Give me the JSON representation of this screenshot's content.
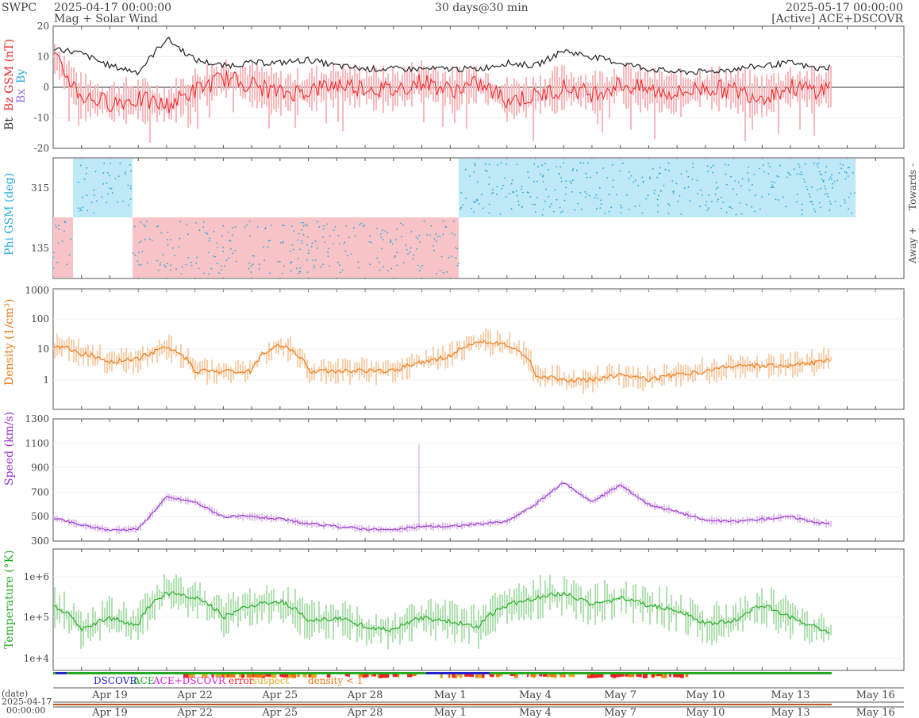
{
  "header": {
    "brand": "SWPC",
    "start": "2025-04-17 00:00:00",
    "subtitle": "Mag + Solar Wind",
    "resolution": "30 days@30 min",
    "end": "2025-05-17 00:00:00",
    "source": "[Active] ACE+DSCOVR"
  },
  "chart_data": [
    {
      "type": "line",
      "name": "mag",
      "ylabels": [
        "Bt",
        "Bz GSM (nT)",
        "Bx",
        "By"
      ],
      "ylim": [
        -20,
        20
      ],
      "yticks": [
        "20",
        "10",
        "0",
        "-10",
        "-20"
      ],
      "colors": {
        "bt": "#222222",
        "bz": "#ee2222",
        "bx": "#9966dd",
        "by": "#22aadd"
      },
      "series": [
        {
          "name": "Bt",
          "x": [
            0,
            1,
            2,
            3,
            4,
            5,
            6,
            7,
            8,
            9,
            10,
            11,
            12,
            13,
            14,
            15,
            16,
            17,
            18,
            19,
            20,
            21,
            22,
            23,
            24,
            25,
            26,
            27,
            28,
            29,
            30
          ],
          "values": [
            13,
            11,
            7,
            5,
            16,
            9,
            7,
            8,
            8,
            9,
            7,
            6,
            6,
            6,
            6,
            6,
            8,
            7,
            12,
            10,
            8,
            6,
            5,
            5,
            6,
            7,
            8,
            6,
            8,
            11,
            7
          ]
        },
        {
          "name": "Bz GSM",
          "x": [
            0,
            1,
            2,
            3,
            4,
            5,
            6,
            7,
            8,
            9,
            10,
            11,
            12,
            13,
            14,
            15,
            16,
            17,
            18,
            19,
            20,
            21,
            22,
            23,
            24,
            25,
            26,
            27,
            28,
            29,
            30
          ],
          "values": [
            10,
            -3,
            -5,
            -4,
            -6,
            -1,
            3,
            1,
            -2,
            -1,
            1,
            0,
            -1,
            2,
            -1,
            1,
            -4,
            -3,
            0,
            -2,
            1,
            -1,
            -2,
            0,
            -1,
            -3,
            0,
            -1,
            2,
            -2,
            3
          ]
        }
      ]
    },
    {
      "type": "scatter",
      "name": "phi",
      "ylabel": "Phi GSM (deg)",
      "yticks": [
        "315",
        "135"
      ],
      "right_labels": [
        "Towards -",
        "Away +"
      ],
      "colors": {
        "points": "#22aadd",
        "towards": "#bfe9f7",
        "away": "#f8c3c6"
      },
      "sectors": [
        {
          "from": 0,
          "to": 0.7,
          "value": "away"
        },
        {
          "from": 0.7,
          "to": 2.8,
          "value": "towards"
        },
        {
          "from": 2.8,
          "to": 14.3,
          "value": "away"
        },
        {
          "from": 14.3,
          "to": 28.3,
          "value": "towards"
        }
      ]
    },
    {
      "type": "line",
      "name": "density",
      "ylabel": "Density (1/cm³)",
      "yscale": "log",
      "ylim": [
        0.3,
        1000
      ],
      "yticks": [
        "1000",
        "100",
        "10",
        "1"
      ],
      "color": "#ee7711",
      "series": [
        {
          "name": "Density",
          "x": [
            0,
            1,
            2,
            3,
            4,
            5,
            6,
            7,
            8,
            9,
            10,
            11,
            12,
            13,
            14,
            15,
            16,
            17,
            18,
            19,
            20,
            21,
            22,
            23,
            24,
            25,
            26,
            27,
            28,
            29,
            30
          ],
          "values": [
            15,
            8,
            4,
            5,
            12,
            2,
            2,
            2,
            15,
            2,
            2,
            2,
            2,
            4,
            6,
            20,
            15,
            1.5,
            1,
            1,
            1.5,
            1,
            1.5,
            2,
            3,
            3,
            3,
            4,
            5,
            5,
            5
          ]
        }
      ]
    },
    {
      "type": "line",
      "name": "speed",
      "ylabel": "Speed (km/s)",
      "ylim": [
        300,
        1300
      ],
      "yticks": [
        "1300",
        "1100",
        "900",
        "700",
        "500",
        "300"
      ],
      "color": "#9933cc",
      "series": [
        {
          "name": "Speed",
          "x": [
            0,
            1,
            2,
            3,
            4,
            5,
            6,
            7,
            8,
            9,
            10,
            11,
            12,
            13,
            14,
            15,
            16,
            17,
            18,
            19,
            20,
            21,
            22,
            23,
            24,
            25,
            26,
            27,
            28,
            29,
            30
          ],
          "values": [
            490,
            430,
            390,
            400,
            660,
            620,
            500,
            500,
            480,
            440,
            420,
            400,
            390,
            420,
            420,
            440,
            460,
            600,
            780,
            620,
            760,
            600,
            540,
            470,
            460,
            480,
            500,
            450,
            430,
            390,
            400
          ]
        }
      ]
    },
    {
      "type": "line",
      "name": "temperature",
      "ylabel": "Temperature (°K)",
      "yscale": "log",
      "yticks": [
        "1e+6",
        "1e+5",
        "1e+4"
      ],
      "color": "#22aa22",
      "series": [
        {
          "name": "Temperature",
          "x": [
            0,
            1,
            2,
            3,
            4,
            5,
            6,
            7,
            8,
            9,
            10,
            11,
            12,
            13,
            14,
            15,
            16,
            17,
            18,
            19,
            20,
            21,
            22,
            23,
            24,
            25,
            26,
            27,
            28,
            29,
            30
          ],
          "values": [
            200000,
            50000,
            100000,
            60000,
            400000,
            300000,
            100000,
            200000,
            250000,
            80000,
            100000,
            60000,
            50000,
            100000,
            80000,
            60000,
            200000,
            300000,
            400000,
            200000,
            300000,
            200000,
            150000,
            70000,
            80000,
            200000,
            100000,
            50000,
            40000,
            70000,
            90000
          ]
        }
      ]
    }
  ],
  "xaxis": {
    "ticks": [
      "Apr 19",
      "Apr 22",
      "Apr 25",
      "Apr 28",
      "May 1",
      "May 4",
      "May 7",
      "May 10",
      "May 13",
      "May 16"
    ],
    "tick_days": [
      2,
      5,
      8,
      11,
      14,
      17,
      20,
      23,
      26,
      29
    ],
    "date_label": "(date)",
    "start_label": "2025-04-17",
    "start_time": "00:00:00"
  },
  "legend": {
    "items": [
      {
        "label": "DSCOVR",
        "color": "#2222cc"
      },
      {
        "label": "ACE",
        "color": "#22aa22"
      },
      {
        "label": "ACE+DSCOVR",
        "color": "#dd22dd"
      },
      {
        "label": "error",
        "color": "#ee2222"
      },
      {
        "label": "suspect",
        "color": "#ddaa22"
      },
      {
        "label": "density < 1",
        "color": "#ee7711"
      }
    ]
  }
}
